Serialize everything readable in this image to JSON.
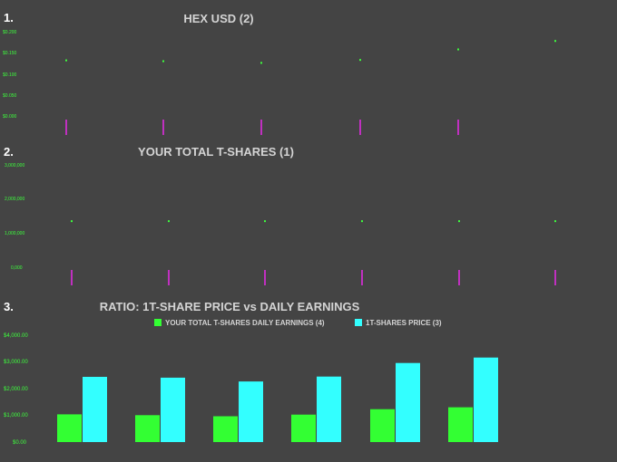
{
  "chart_data": [
    {
      "number": "1.",
      "type": "scatter",
      "title": "HEX USD (2)",
      "y_ticks": [
        "$0.200",
        "$0.150",
        "$0.100",
        "$0.050",
        "$0.000"
      ],
      "ylim": [
        0,
        0.2
      ],
      "values": [
        0.132,
        0.13,
        0.126,
        0.133,
        0.158,
        0.178
      ],
      "colors": {
        "point": "#3dff3d",
        "marker": "#c030c0",
        "tick": "#3dff3d"
      }
    },
    {
      "number": "2.",
      "type": "scatter",
      "title": "YOUR TOTAL T-SHARES (1)",
      "y_ticks": [
        "3,000,000",
        "2,000,000",
        "1,000,000",
        "0,000"
      ],
      "ylim": [
        0,
        3000000
      ],
      "values": [
        1350000,
        1350000,
        1350000,
        1350000,
        1350000,
        1350000
      ],
      "colors": {
        "point": "#3dff3d",
        "marker": "#c030c0",
        "tick": "#3dff3d"
      }
    },
    {
      "number": "3.",
      "type": "bar",
      "title": "RATIO: 1T-SHARE PRICE vs DAILY EARNINGS",
      "y_ticks": [
        "$4,000.00",
        "$3,000.00",
        "$2,000.00",
        "$1,000.00",
        "$0.00"
      ],
      "ylim": [
        0,
        4000
      ],
      "legend_position": "top",
      "series": [
        {
          "name": "YOUR TOTAL T-SHARES DAILY EARNINGS (4)",
          "color": "#33ff33",
          "values": [
            1020,
            990,
            950,
            1010,
            1210,
            1280
          ]
        },
        {
          "name": "1T-SHARES PRICE (3)",
          "color": "#33ffff",
          "values": [
            2400,
            2370,
            2230,
            2410,
            2910,
            3110
          ]
        }
      ]
    }
  ]
}
